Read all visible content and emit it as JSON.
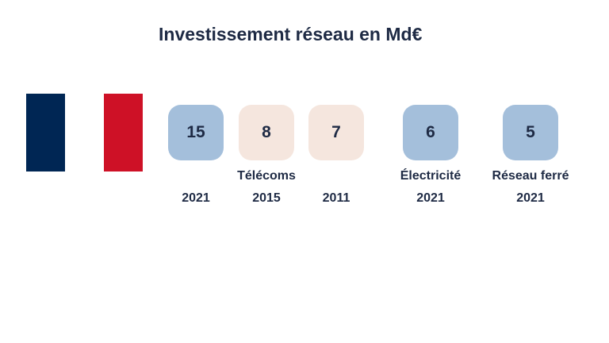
{
  "title": "Investissement réseau en Md€",
  "colors": {
    "flag_blue": "#002654",
    "flag_white": "#ffffff",
    "flag_red": "#ce1126",
    "tile_blue": "#a4bfdb",
    "tile_beige": "#f5e6de",
    "text": "#1e2a44"
  },
  "chart_data": {
    "type": "table",
    "title": "Investissement réseau en Md€",
    "items": [
      {
        "value": 15,
        "category": "",
        "year": "2021",
        "color": "#a4bfdb"
      },
      {
        "value": 8,
        "category": "Télécoms",
        "year": "2015",
        "color": "#f5e6de"
      },
      {
        "value": 7,
        "category": "",
        "year": "2011",
        "color": "#f5e6de"
      },
      {
        "value": 6,
        "category": "Électricité",
        "year": "2021",
        "color": "#a4bfdb"
      },
      {
        "value": 5,
        "category": "Réseau ferré",
        "year": "2021",
        "color": "#a4bfdb"
      }
    ]
  }
}
